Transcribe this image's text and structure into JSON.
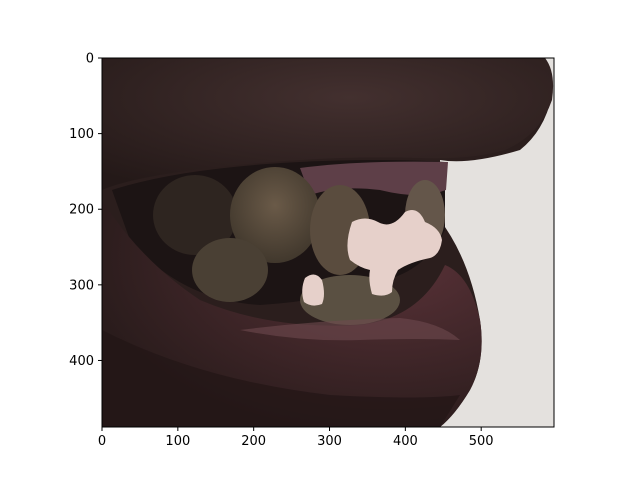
{
  "image": {
    "subject": "",
    "x_ticks": [
      "0",
      "100",
      "200",
      "300",
      "400",
      "500"
    ],
    "y_ticks": [
      "0",
      "100",
      "200",
      "300",
      "400"
    ],
    "x_tick_values": [
      0,
      100,
      200,
      300,
      400,
      500
    ],
    "y_tick_values": [
      0,
      100,
      200,
      300,
      400
    ],
    "x_range": [
      0,
      596
    ],
    "y_range": [
      0,
      488
    ],
    "colors": {
      "background_right": "#e6e3e0",
      "lip": "#3a2626",
      "lower_lip": "#4a2a2e",
      "shadow": "#1f1616",
      "gum": "#6a4a52",
      "tooth": "#54483a",
      "mask": "#e8d2cc"
    }
  }
}
